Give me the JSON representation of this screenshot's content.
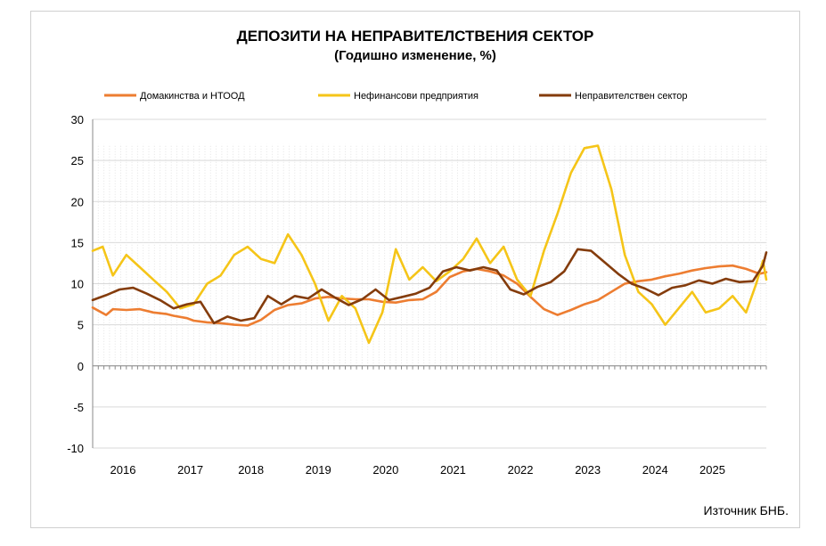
{
  "chart_data": {
    "type": "line",
    "title": "ДЕПОЗИТИ НА НЕПРАВИТЕЛСТВЕНИЯ СЕКТОР",
    "subtitle": "(Годишно изменение, %)",
    "source": "Източник БНБ.",
    "ylim": [
      -10,
      30
    ],
    "yticks": [
      "30",
      "25",
      "20",
      "15",
      "10",
      "5",
      "0",
      "-5",
      "-10"
    ],
    "ytick_values": [
      30,
      25,
      20,
      15,
      10,
      5,
      0,
      -5,
      -10
    ],
    "x_start": 2015.5,
    "x_end": 2025.5,
    "x_labels": [
      {
        "label": "2016",
        "at": 2015.95
      },
      {
        "label": "2017",
        "at": 2016.95
      },
      {
        "label": "2018",
        "at": 2017.85
      },
      {
        "label": "2019",
        "at": 2018.85
      },
      {
        "label": "2020",
        "at": 2019.85
      },
      {
        "label": "2021",
        "at": 2020.85
      },
      {
        "label": "2022",
        "at": 2021.85
      },
      {
        "label": "2023",
        "at": 2022.85
      },
      {
        "label": "2024",
        "at": 2023.85
      },
      {
        "label": "2025",
        "at": 2024.7
      }
    ],
    "grid": true,
    "legend_position": "top",
    "series": [
      {
        "name": "Домакинства и НТООД",
        "color": "#ed7d31",
        "points": [
          [
            2015.5,
            7.1
          ],
          [
            2015.7,
            6.2
          ],
          [
            2015.8,
            6.9
          ],
          [
            2016.0,
            6.8
          ],
          [
            2016.2,
            6.9
          ],
          [
            2016.4,
            6.5
          ],
          [
            2016.6,
            6.3
          ],
          [
            2016.7,
            6.1
          ],
          [
            2016.9,
            5.8
          ],
          [
            2017.0,
            5.5
          ],
          [
            2017.2,
            5.3
          ],
          [
            2017.4,
            5.2
          ],
          [
            2017.6,
            5.0
          ],
          [
            2017.8,
            4.9
          ],
          [
            2018.0,
            5.6
          ],
          [
            2018.2,
            6.8
          ],
          [
            2018.4,
            7.4
          ],
          [
            2018.6,
            7.6
          ],
          [
            2018.8,
            8.2
          ],
          [
            2019.0,
            8.4
          ],
          [
            2019.2,
            8.2
          ],
          [
            2019.4,
            8.1
          ],
          [
            2019.6,
            8.1
          ],
          [
            2019.8,
            7.8
          ],
          [
            2020.0,
            7.7
          ],
          [
            2020.2,
            8.0
          ],
          [
            2020.4,
            8.1
          ],
          [
            2020.6,
            9.0
          ],
          [
            2020.8,
            10.8
          ],
          [
            2021.0,
            11.5
          ],
          [
            2021.2,
            11.8
          ],
          [
            2021.4,
            11.5
          ],
          [
            2021.6,
            11.0
          ],
          [
            2021.8,
            10.0
          ],
          [
            2022.0,
            8.4
          ],
          [
            2022.2,
            6.9
          ],
          [
            2022.4,
            6.2
          ],
          [
            2022.6,
            6.8
          ],
          [
            2022.8,
            7.5
          ],
          [
            2023.0,
            8.0
          ],
          [
            2023.2,
            9.0
          ],
          [
            2023.4,
            10.0
          ],
          [
            2023.6,
            10.3
          ],
          [
            2023.8,
            10.5
          ],
          [
            2024.0,
            10.9
          ],
          [
            2024.2,
            11.2
          ],
          [
            2024.4,
            11.6
          ],
          [
            2024.6,
            11.9
          ],
          [
            2024.8,
            12.1
          ],
          [
            2025.0,
            12.2
          ],
          [
            2025.2,
            11.8
          ],
          [
            2025.4,
            11.2
          ],
          [
            2025.5,
            11.4
          ]
        ]
      },
      {
        "name": "Нефинансови предприятия",
        "color": "#f5c518",
        "points": [
          [
            2015.5,
            14.0
          ],
          [
            2015.65,
            14.5
          ],
          [
            2015.8,
            11.0
          ],
          [
            2016.0,
            13.5
          ],
          [
            2016.2,
            12.0
          ],
          [
            2016.4,
            10.5
          ],
          [
            2016.6,
            9.0
          ],
          [
            2016.8,
            7.0
          ],
          [
            2017.0,
            7.5
          ],
          [
            2017.2,
            10.0
          ],
          [
            2017.4,
            11.0
          ],
          [
            2017.6,
            13.5
          ],
          [
            2017.8,
            14.5
          ],
          [
            2018.0,
            13.0
          ],
          [
            2018.2,
            12.5
          ],
          [
            2018.4,
            16.0
          ],
          [
            2018.6,
            13.5
          ],
          [
            2018.8,
            10.0
          ],
          [
            2019.0,
            5.5
          ],
          [
            2019.2,
            8.5
          ],
          [
            2019.4,
            7.0
          ],
          [
            2019.6,
            2.8
          ],
          [
            2019.8,
            6.5
          ],
          [
            2020.0,
            14.2
          ],
          [
            2020.2,
            10.5
          ],
          [
            2020.4,
            12.0
          ],
          [
            2020.6,
            10.3
          ],
          [
            2020.8,
            11.5
          ],
          [
            2021.0,
            13.0
          ],
          [
            2021.2,
            15.5
          ],
          [
            2021.4,
            12.5
          ],
          [
            2021.6,
            14.5
          ],
          [
            2021.8,
            10.5
          ],
          [
            2022.0,
            8.5
          ],
          [
            2022.2,
            14.0
          ],
          [
            2022.4,
            18.5
          ],
          [
            2022.6,
            23.5
          ],
          [
            2022.8,
            26.5
          ],
          [
            2023.0,
            26.8
          ],
          [
            2023.2,
            21.5
          ],
          [
            2023.4,
            13.5
          ],
          [
            2023.6,
            9.0
          ],
          [
            2023.8,
            7.5
          ],
          [
            2024.0,
            5.0
          ],
          [
            2024.2,
            7.0
          ],
          [
            2024.4,
            9.0
          ],
          [
            2024.6,
            6.5
          ],
          [
            2024.8,
            7.0
          ],
          [
            2025.0,
            8.5
          ],
          [
            2025.2,
            6.5
          ],
          [
            2025.35,
            10.0
          ],
          [
            2025.45,
            12.8
          ],
          [
            2025.5,
            10.5
          ]
        ]
      },
      {
        "name": "Неправителствен сектор",
        "color": "#843c0c",
        "points": [
          [
            2015.5,
            8.0
          ],
          [
            2015.7,
            8.6
          ],
          [
            2015.9,
            9.3
          ],
          [
            2016.1,
            9.5
          ],
          [
            2016.3,
            8.8
          ],
          [
            2016.5,
            8.0
          ],
          [
            2016.7,
            7.0
          ],
          [
            2016.9,
            7.5
          ],
          [
            2017.1,
            7.8
          ],
          [
            2017.3,
            5.2
          ],
          [
            2017.5,
            6.0
          ],
          [
            2017.7,
            5.5
          ],
          [
            2017.9,
            5.8
          ],
          [
            2018.1,
            8.5
          ],
          [
            2018.3,
            7.5
          ],
          [
            2018.5,
            8.5
          ],
          [
            2018.7,
            8.2
          ],
          [
            2018.9,
            9.3
          ],
          [
            2019.1,
            8.3
          ],
          [
            2019.3,
            7.4
          ],
          [
            2019.5,
            8.1
          ],
          [
            2019.7,
            9.3
          ],
          [
            2019.9,
            8.0
          ],
          [
            2020.1,
            8.4
          ],
          [
            2020.3,
            8.8
          ],
          [
            2020.5,
            9.5
          ],
          [
            2020.7,
            11.5
          ],
          [
            2020.9,
            12.0
          ],
          [
            2021.1,
            11.6
          ],
          [
            2021.3,
            12.0
          ],
          [
            2021.5,
            11.6
          ],
          [
            2021.7,
            9.3
          ],
          [
            2021.9,
            8.7
          ],
          [
            2022.1,
            9.6
          ],
          [
            2022.3,
            10.2
          ],
          [
            2022.5,
            11.5
          ],
          [
            2022.7,
            14.2
          ],
          [
            2022.9,
            14.0
          ],
          [
            2023.1,
            12.6
          ],
          [
            2023.3,
            11.2
          ],
          [
            2023.5,
            10.0
          ],
          [
            2023.7,
            9.4
          ],
          [
            2023.9,
            8.6
          ],
          [
            2024.1,
            9.5
          ],
          [
            2024.3,
            9.8
          ],
          [
            2024.5,
            10.4
          ],
          [
            2024.7,
            10.0
          ],
          [
            2024.9,
            10.6
          ],
          [
            2025.1,
            10.2
          ],
          [
            2025.3,
            10.3
          ],
          [
            2025.45,
            12.2
          ],
          [
            2025.5,
            13.8
          ]
        ]
      }
    ]
  }
}
